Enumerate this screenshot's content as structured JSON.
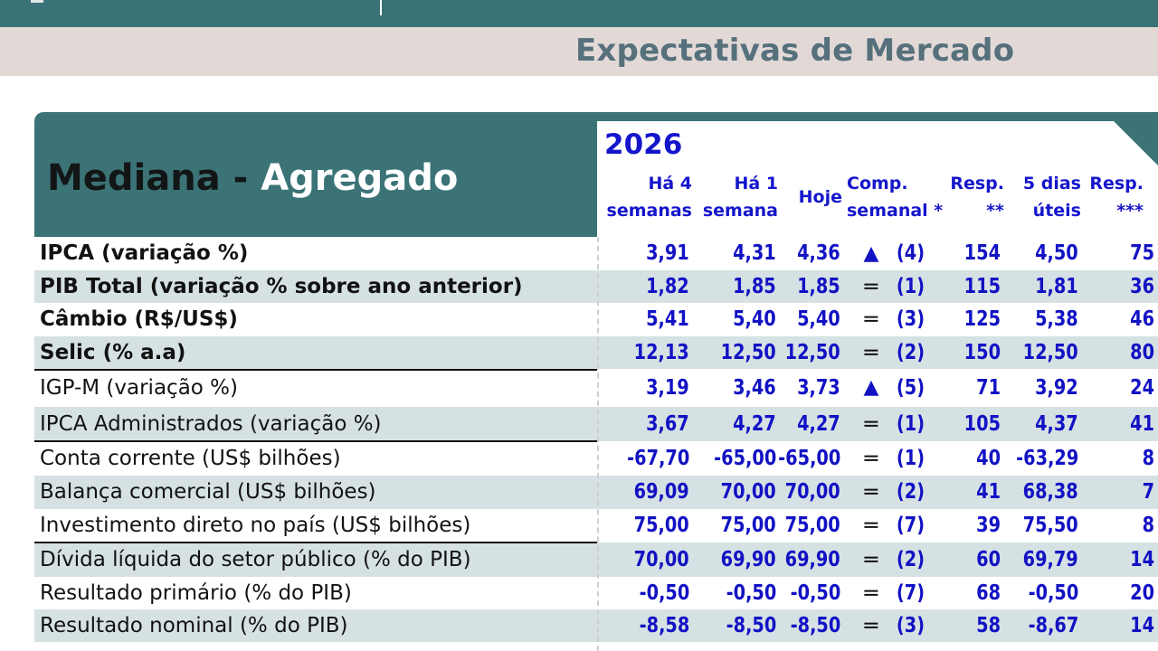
{
  "page_title": "Expectativas de Mercado",
  "panel": {
    "title_dark": "Mediana -",
    "title_light": "Agregado",
    "year": "2026"
  },
  "columns": [
    {
      "l1": "Há 4",
      "l2": "semanas"
    },
    {
      "l1": "Há 1",
      "l2": "semana"
    },
    {
      "l1": "Hoje",
      "l2": ""
    },
    {
      "l1": "Comp.",
      "l2": "semanal *"
    },
    {
      "l1": "Resp.",
      "l2": "**"
    },
    {
      "l1": "5 dias",
      "l2": "úteis"
    },
    {
      "l1": "Resp.",
      "l2": "***"
    }
  ],
  "rows": [
    {
      "label": "IPCA (variação %)",
      "bold": true,
      "shaded": false,
      "ha4": "3,91",
      "ha1": "4,31",
      "hoje": "4,36",
      "trend": "up",
      "weeks": "(4)",
      "resp": "154",
      "dias5": "4,50",
      "resp5": "75"
    },
    {
      "label": "PIB Total (variação % sobre ano anterior)",
      "bold": true,
      "shaded": true,
      "ha4": "1,82",
      "ha1": "1,85",
      "hoje": "1,85",
      "trend": "equal",
      "weeks": "(1)",
      "resp": "115",
      "dias5": "1,81",
      "resp5": "36"
    },
    {
      "label": "Câmbio (R$/US$)",
      "bold": true,
      "shaded": false,
      "ha4": "5,41",
      "ha1": "5,40",
      "hoje": "5,40",
      "trend": "equal",
      "weeks": "(3)",
      "resp": "125",
      "dias5": "5,38",
      "resp5": "46"
    },
    {
      "label": "Selic (% a.a)",
      "bold": true,
      "shaded": true,
      "ha4": "12,13",
      "ha1": "12,50",
      "hoje": "12,50",
      "trend": "equal",
      "weeks": "(2)",
      "resp": "150",
      "dias5": "12,50",
      "resp5": "80"
    },
    {
      "label": "IGP-M (variação %)",
      "bold": false,
      "shaded": false,
      "ha4": "3,19",
      "ha1": "3,46",
      "hoje": "3,73",
      "trend": "up",
      "weeks": "(5)",
      "resp": "71",
      "dias5": "3,92",
      "resp5": "24"
    },
    {
      "label": "IPCA Administrados (variação %)",
      "bold": false,
      "shaded": true,
      "ha4": "3,67",
      "ha1": "4,27",
      "hoje": "4,27",
      "trend": "equal",
      "weeks": "(1)",
      "resp": "105",
      "dias5": "4,37",
      "resp5": "41"
    },
    {
      "label": "Conta corrente (US$ bilhões)",
      "bold": false,
      "shaded": false,
      "ha4": "-67,70",
      "ha1": "-65,00",
      "hoje": "-65,00",
      "trend": "equal",
      "weeks": "(1)",
      "resp": "40",
      "dias5": "-63,29",
      "resp5": "8"
    },
    {
      "label": "Balança comercial (US$ bilhões)",
      "bold": false,
      "shaded": true,
      "ha4": "69,09",
      "ha1": "70,00",
      "hoje": "70,00",
      "trend": "equal",
      "weeks": "(2)",
      "resp": "41",
      "dias5": "68,38",
      "resp5": "7"
    },
    {
      "label": "Investimento direto no país (US$ bilhões)",
      "bold": false,
      "shaded": false,
      "ha4": "75,00",
      "ha1": "75,00",
      "hoje": "75,00",
      "trend": "equal",
      "weeks": "(7)",
      "resp": "39",
      "dias5": "75,50",
      "resp5": "8"
    },
    {
      "label": "Dívida líquida do setor público (% do PIB)",
      "bold": false,
      "shaded": true,
      "ha4": "70,00",
      "ha1": "69,90",
      "hoje": "69,90",
      "trend": "equal",
      "weeks": "(2)",
      "resp": "60",
      "dias5": "69,79",
      "resp5": "14"
    },
    {
      "label": "Resultado primário (% do PIB)",
      "bold": false,
      "shaded": false,
      "ha4": "-0,50",
      "ha1": "-0,50",
      "hoje": "-0,50",
      "trend": "equal",
      "weeks": "(7)",
      "resp": "68",
      "dias5": "-0,50",
      "resp5": "20"
    },
    {
      "label": "Resultado nominal (% do PIB)",
      "bold": false,
      "shaded": true,
      "ha4": "-8,58",
      "ha1": "-8,50",
      "hoje": "-8,50",
      "trend": "equal",
      "weeks": "(3)",
      "resp": "58",
      "dias5": "-8,67",
      "resp5": "14"
    }
  ],
  "colors": {
    "teal": "#3b7376",
    "value_blue": "#1212c4",
    "shade": "#d6e1e4",
    "band": "#e2d9d7"
  }
}
